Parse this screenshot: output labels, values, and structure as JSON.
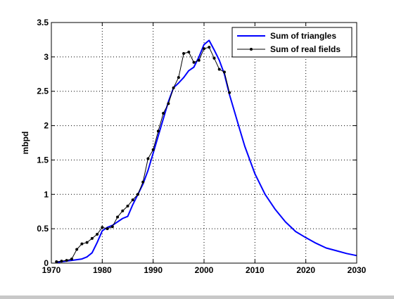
{
  "chart_data": {
    "type": "line",
    "title": "",
    "xlabel": "",
    "ylabel": "mbpd",
    "xlim": [
      1970,
      2030
    ],
    "ylim": [
      0,
      3.5
    ],
    "xticks": [
      1970,
      1980,
      1990,
      2000,
      2010,
      2020,
      2030
    ],
    "yticks": [
      0,
      0.5,
      1,
      1.5,
      2,
      2.5,
      3,
      3.5
    ],
    "xtick_labels": [
      "1970",
      "1980",
      "1990",
      "2000",
      "2010",
      "2020",
      "2030"
    ],
    "ytick_labels": [
      "0",
      "0.5",
      "1",
      "1.5",
      "2",
      "2.5",
      "3",
      "3.5"
    ],
    "grid": true,
    "legend_position": "top-right",
    "series": [
      {
        "name": "Sum of triangles",
        "color": "#0000ff",
        "marker": "none",
        "x": [
          1971,
          1972,
          1973,
          1974,
          1975,
          1976,
          1977,
          1978,
          1979,
          1980,
          1981,
          1982,
          1983,
          1984,
          1985,
          1986,
          1987,
          1988,
          1989,
          1990,
          1991,
          1992,
          1993,
          1994,
          1995,
          1996,
          1997,
          1998,
          1999,
          2000,
          2001,
          2002,
          2003,
          2004,
          2005,
          2006,
          2007,
          2008,
          2010,
          2012,
          2014,
          2016,
          2018,
          2020,
          2022,
          2024,
          2026,
          2028,
          2030
        ],
        "values": [
          0.01,
          0.02,
          0.03,
          0.04,
          0.05,
          0.06,
          0.09,
          0.15,
          0.3,
          0.47,
          0.52,
          0.55,
          0.6,
          0.65,
          0.68,
          0.85,
          1.0,
          1.15,
          1.35,
          1.6,
          1.85,
          2.1,
          2.35,
          2.55,
          2.62,
          2.7,
          2.8,
          2.85,
          3.0,
          3.18,
          3.24,
          3.1,
          2.95,
          2.75,
          2.45,
          2.2,
          1.95,
          1.7,
          1.3,
          1.0,
          0.78,
          0.6,
          0.46,
          0.37,
          0.29,
          0.22,
          0.18,
          0.14,
          0.11
        ]
      },
      {
        "name": "Sum of real fields",
        "color": "#000000",
        "marker": "dot",
        "x": [
          1971,
          1972,
          1973,
          1974,
          1975,
          1976,
          1977,
          1978,
          1979,
          1980,
          1981,
          1982,
          1983,
          1984,
          1985,
          1986,
          1987,
          1988,
          1989,
          1990,
          1991,
          1992,
          1993,
          1994,
          1995,
          1996,
          1997,
          1998,
          1999,
          2000,
          2001,
          2002,
          2003,
          2004,
          2005
        ],
        "values": [
          0.02,
          0.03,
          0.04,
          0.06,
          0.2,
          0.28,
          0.3,
          0.36,
          0.42,
          0.52,
          0.5,
          0.53,
          0.67,
          0.76,
          0.83,
          0.92,
          1.0,
          1.18,
          1.52,
          1.65,
          1.92,
          2.18,
          2.32,
          2.55,
          2.7,
          3.05,
          3.07,
          2.92,
          2.95,
          3.12,
          3.14,
          2.98,
          2.82,
          2.78,
          2.48
        ]
      }
    ]
  }
}
